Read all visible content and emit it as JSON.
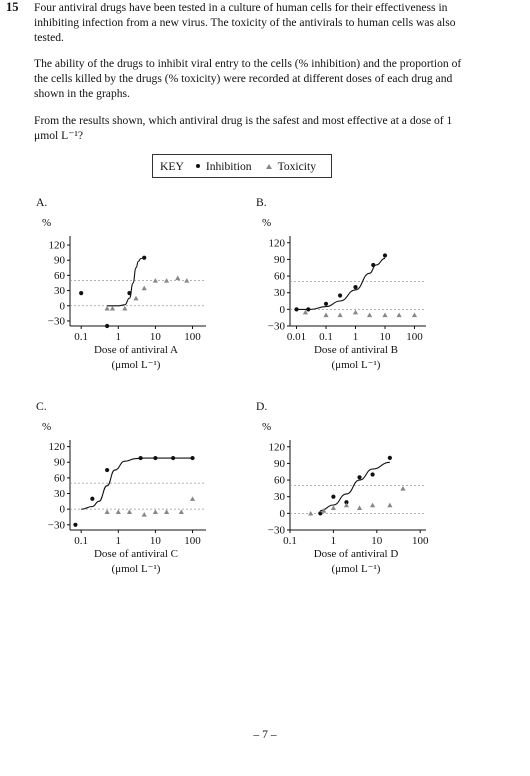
{
  "question": {
    "number": "15",
    "para1": "Four antiviral drugs have been tested in a culture of human cells for their effectiveness in inhibiting infection from a new virus. The toxicity of the antivirals to human cells was also tested.",
    "para2": "The ability of the drugs to inhibit viral entry to the cells (% inhibition) and the proportion of the cells killed by the drugs (% toxicity) were recorded at different doses of each drug and shown in the graphs.",
    "para3": "From the results shown, which antiviral drug is the safest and most effective at a dose of 1 μmol L⁻¹?"
  },
  "key": {
    "title": "KEY",
    "inhibition_label": "Inhibition",
    "toxicity_label": "Toxicity",
    "colors": {
      "inhibition": "#111111",
      "toxicity": "#888888"
    }
  },
  "footer": "– 7 –",
  "chart_data": [
    {
      "type": "scatter",
      "panel_label": "A.",
      "ylabel": "%",
      "xlabel": "Dose of antiviral A",
      "xunit": "(μmol L⁻¹)",
      "x_scale": "log",
      "xlim": [
        0.05,
        180
      ],
      "ylim": [
        -40,
        130
      ],
      "xticks": [
        0.1,
        1,
        10,
        100
      ],
      "xtick_labels": [
        "0.1",
        "1",
        "10",
        "100"
      ],
      "yticks": [
        120,
        90,
        60,
        30,
        0,
        -30
      ],
      "ytick_labels": [
        "120",
        "90",
        "60",
        "30",
        "0",
        "−30"
      ],
      "reference_lines": [
        50,
        0
      ],
      "series": [
        {
          "name": "Inhibition",
          "marker": "dot",
          "x": [
            0.1,
            0.5,
            2,
            5
          ],
          "y": [
            25,
            -40,
            25,
            95
          ]
        },
        {
          "name": "Toxicity",
          "marker": "triangle",
          "x": [
            0.5,
            0.7,
            1.5,
            3,
            5,
            10,
            20,
            40,
            70
          ],
          "y": [
            -5,
            -5,
            -5,
            15,
            35,
            50,
            50,
            55,
            50
          ]
        }
      ],
      "curve": {
        "x": [
          0.5,
          1,
          1.5,
          2,
          2.5,
          3,
          3.5,
          4,
          5
        ],
        "y": [
          0,
          0,
          2,
          15,
          45,
          75,
          88,
          93,
          95
        ]
      }
    },
    {
      "type": "scatter",
      "panel_label": "B.",
      "ylabel": "%",
      "xlabel": "Dose of antiviral B",
      "xunit": "(μmol L⁻¹)",
      "x_scale": "log",
      "xlim": [
        0.006,
        180
      ],
      "ylim": [
        -30,
        125
      ],
      "xticks": [
        0.01,
        0.1,
        1,
        10,
        100
      ],
      "xtick_labels": [
        "0.01",
        "0.1",
        "1",
        "10",
        "100"
      ],
      "yticks": [
        120,
        90,
        60,
        30,
        0,
        -30
      ],
      "ytick_labels": [
        "120",
        "90",
        "60",
        "30",
        "0",
        "−30"
      ],
      "reference_lines": [
        50,
        0
      ],
      "series": [
        {
          "name": "Inhibition",
          "marker": "dot",
          "x": [
            0.01,
            0.025,
            0.1,
            0.3,
            1,
            4,
            10
          ],
          "y": [
            0,
            0,
            10,
            25,
            40,
            80,
            97
          ]
        },
        {
          "name": "Toxicity",
          "marker": "triangle",
          "x": [
            0.02,
            0.1,
            0.3,
            1,
            3,
            10,
            30,
            100
          ],
          "y": [
            -5,
            -10,
            -10,
            -5,
            -10,
            -10,
            -10,
            -10
          ]
        }
      ],
      "curve": {
        "x": [
          0.01,
          0.03,
          0.1,
          0.3,
          1,
          3,
          5,
          10
        ],
        "y": [
          0,
          0,
          5,
          15,
          35,
          65,
          80,
          92
        ]
      }
    },
    {
      "type": "scatter",
      "panel_label": "C.",
      "ylabel": "%",
      "xlabel": "Dose of antiviral C",
      "xunit": "(μmol L⁻¹)",
      "x_scale": "log",
      "xlim": [
        0.05,
        180
      ],
      "ylim": [
        -40,
        125
      ],
      "xticks": [
        0.1,
        1,
        10,
        100
      ],
      "xtick_labels": [
        "0.1",
        "1",
        "10",
        "100"
      ],
      "yticks": [
        120,
        90,
        60,
        30,
        0,
        -30
      ],
      "ytick_labels": [
        "120",
        "90",
        "60",
        "30",
        "0",
        "−30"
      ],
      "reference_lines": [
        50,
        0
      ],
      "series": [
        {
          "name": "Inhibition",
          "marker": "dot",
          "x": [
            0.07,
            0.2,
            0.5,
            4,
            10,
            30,
            100
          ],
          "y": [
            -30,
            20,
            75,
            98,
            98,
            98,
            98
          ]
        },
        {
          "name": "Toxicity",
          "marker": "triangle",
          "x": [
            0.5,
            1,
            2,
            5,
            10,
            20,
            50,
            100
          ],
          "y": [
            -5,
            -5,
            -5,
            -10,
            -5,
            -5,
            -5,
            20
          ]
        }
      ],
      "curve": {
        "x": [
          0.1,
          0.2,
          0.3,
          0.5,
          0.8,
          1.5,
          3,
          5,
          10,
          100
        ],
        "y": [
          0,
          5,
          15,
          45,
          75,
          92,
          97,
          98,
          98,
          98
        ]
      }
    },
    {
      "type": "scatter",
      "panel_label": "D.",
      "ylabel": "%",
      "xlabel": "Dose of antiviral D",
      "xunit": "(μmol L⁻¹)",
      "x_scale": "log",
      "xlim": [
        0.1,
        110
      ],
      "ylim": [
        -30,
        125
      ],
      "xticks": [
        0.1,
        1,
        10,
        100
      ],
      "xtick_labels": [
        "0.1",
        "1",
        "10",
        "100"
      ],
      "yticks": [
        120,
        90,
        60,
        30,
        0,
        -30
      ],
      "ytick_labels": [
        "120",
        "90",
        "60",
        "30",
        "0",
        "−30"
      ],
      "reference_lines": [
        50,
        0
      ],
      "series": [
        {
          "name": "Inhibition",
          "marker": "dot",
          "x": [
            0.5,
            1,
            2,
            4,
            8,
            20
          ],
          "y": [
            0,
            30,
            20,
            65,
            70,
            100
          ]
        },
        {
          "name": "Toxicity",
          "marker": "triangle",
          "x": [
            0.3,
            0.6,
            1,
            2,
            4,
            8,
            20,
            40
          ],
          "y": [
            0,
            5,
            10,
            15,
            10,
            15,
            15,
            45
          ]
        }
      ],
      "curve": {
        "x": [
          0.5,
          1,
          2,
          4,
          8,
          20
        ],
        "y": [
          5,
          15,
          35,
          60,
          80,
          92
        ]
      }
    }
  ]
}
